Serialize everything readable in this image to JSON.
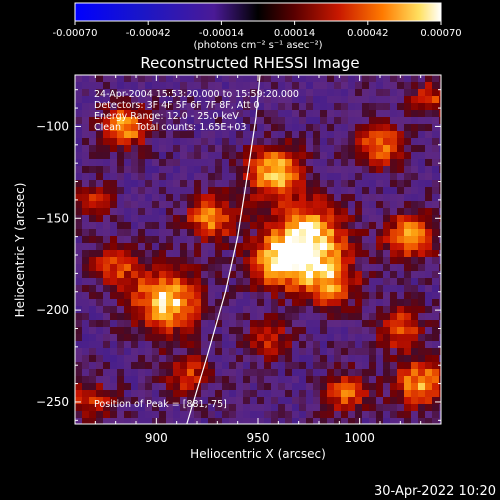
{
  "colorbar": {
    "min": -0.0007,
    "max": 0.0007,
    "tick_labels": [
      "-0.00070",
      "-0.00042",
      "-0.00014",
      "0.00014",
      "0.00042",
      "0.00070"
    ],
    "units": "(photons cm⁻² s⁻¹ asec⁻²)"
  },
  "chart_data": {
    "type": "heatmap",
    "title": "Reconstructed RHESSI Image",
    "xlabel": "Heliocentric X (arcsec)",
    "ylabel": "Heliocentric Y (arcsec)",
    "xlim": [
      860,
      1040
    ],
    "ylim": [
      -262,
      -72
    ],
    "x_ticks": [
      900,
      950,
      1000
    ],
    "y_ticks": [
      -250,
      -200,
      -150,
      -100
    ],
    "x_tick_labels": [
      "900",
      "950",
      "1000"
    ],
    "y_tick_labels": [
      "−250",
      "−200",
      "−150",
      "−100"
    ],
    "limb_curve": [
      [
        915,
        -262
      ],
      [
        925,
        -225
      ],
      [
        934,
        -190
      ],
      [
        940,
        -160
      ],
      [
        945,
        -125
      ],
      [
        949,
        -95
      ],
      [
        951,
        -72
      ]
    ],
    "hotspots": [
      {
        "x": 958,
        "y": -125,
        "s": 10,
        "a": 1.0
      },
      {
        "x": 975,
        "y": -160,
        "s": 13,
        "a": 1.1
      },
      {
        "x": 960,
        "y": -175,
        "s": 10,
        "a": 0.9
      },
      {
        "x": 985,
        "y": -185,
        "s": 10,
        "a": 0.8
      },
      {
        "x": 905,
        "y": -195,
        "s": 12,
        "a": 1.05
      },
      {
        "x": 880,
        "y": -175,
        "s": 9,
        "a": 0.6
      },
      {
        "x": 885,
        "y": -100,
        "s": 8,
        "a": 0.9
      },
      {
        "x": 927,
        "y": -150,
        "s": 9,
        "a": 0.8
      },
      {
        "x": 1025,
        "y": -160,
        "s": 9,
        "a": 0.9
      },
      {
        "x": 1020,
        "y": -210,
        "s": 8,
        "a": 0.7
      },
      {
        "x": 1030,
        "y": -240,
        "s": 9,
        "a": 0.9
      },
      {
        "x": 1010,
        "y": -110,
        "s": 9,
        "a": 0.75
      },
      {
        "x": 993,
        "y": -245,
        "s": 8,
        "a": 0.7
      },
      {
        "x": 915,
        "y": -235,
        "s": 8,
        "a": 0.6
      },
      {
        "x": 955,
        "y": -215,
        "s": 8,
        "a": 0.55
      },
      {
        "x": 868,
        "y": -250,
        "s": 8,
        "a": 0.55
      },
      {
        "x": 1035,
        "y": -85,
        "s": 7,
        "a": 0.6
      },
      {
        "x": 870,
        "y": -140,
        "s": 7,
        "a": 0.5
      }
    ],
    "annotations": {
      "time": "24-Apr-2004 15:53:20.000 to 15:59:20.000",
      "detectors": "Detectors: 3F 4F 5F 6F 7F 8F, Att 0",
      "energy": "Energy Range: 12.0 - 25.0 keV",
      "algorithm": "Clean     Total counts: 1.65E+03",
      "peak": "Position of Peak = [881,-75]"
    }
  },
  "timestamp": "30-Apr-2022 10:20"
}
